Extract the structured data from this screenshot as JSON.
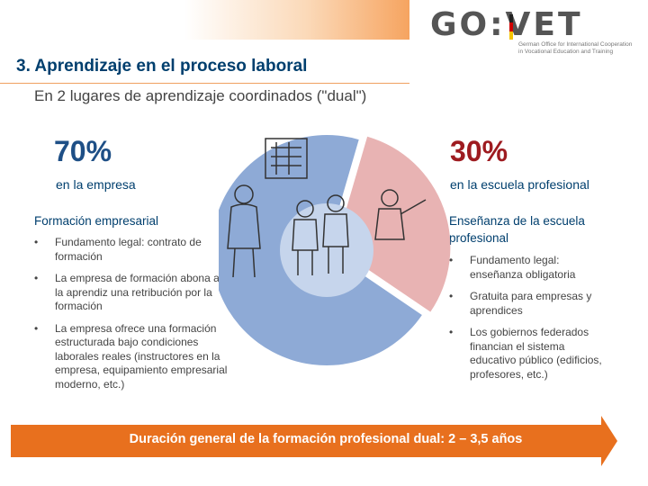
{
  "header": {
    "logo_text": "GO:VET",
    "logo_tagline": "German Office for International Cooperation in Vocational Education and Training",
    "title": "3. Aprendizaje en el proceso laboral",
    "subtitle": "En 2 lugares de aprendizaje coordinados (\"dual\")"
  },
  "colors": {
    "blue": "#8eaad6",
    "blue_light": "#c6d5ec",
    "red": "#e8b3b3",
    "accent": "#e8701e"
  },
  "chart_data": {
    "type": "pie",
    "categories": [
      "en la empresa",
      "en la escuela profesional"
    ],
    "values": [
      70,
      30
    ]
  },
  "left": {
    "percent": "70%",
    "place": "en la empresa",
    "heading": "Formación empresarial",
    "bullets": [
      "Fundamento legal: contrato de formación",
      "La empresa de formación abona al/a la aprendiz una retribución por la formación",
      "La empresa ofrece una formación estructurada bajo condiciones laborales reales (instructores en la empresa, equipamiento empresarial moderno, etc.)"
    ]
  },
  "right": {
    "percent": "30%",
    "place": "en la escuela profesional",
    "heading": "Enseñanza de la escuela profesional",
    "bullets": [
      "Fundamento legal: enseñanza obligatoria",
      "Gratuita para empresas y aprendices",
      "Los gobiernos federados financian el sistema educativo público (edificios, profesores, etc.)"
    ]
  },
  "bullet_symbol": "•",
  "footer": {
    "duration": "Duración general de la formación profesional dual: 2 – 3,5 años"
  }
}
